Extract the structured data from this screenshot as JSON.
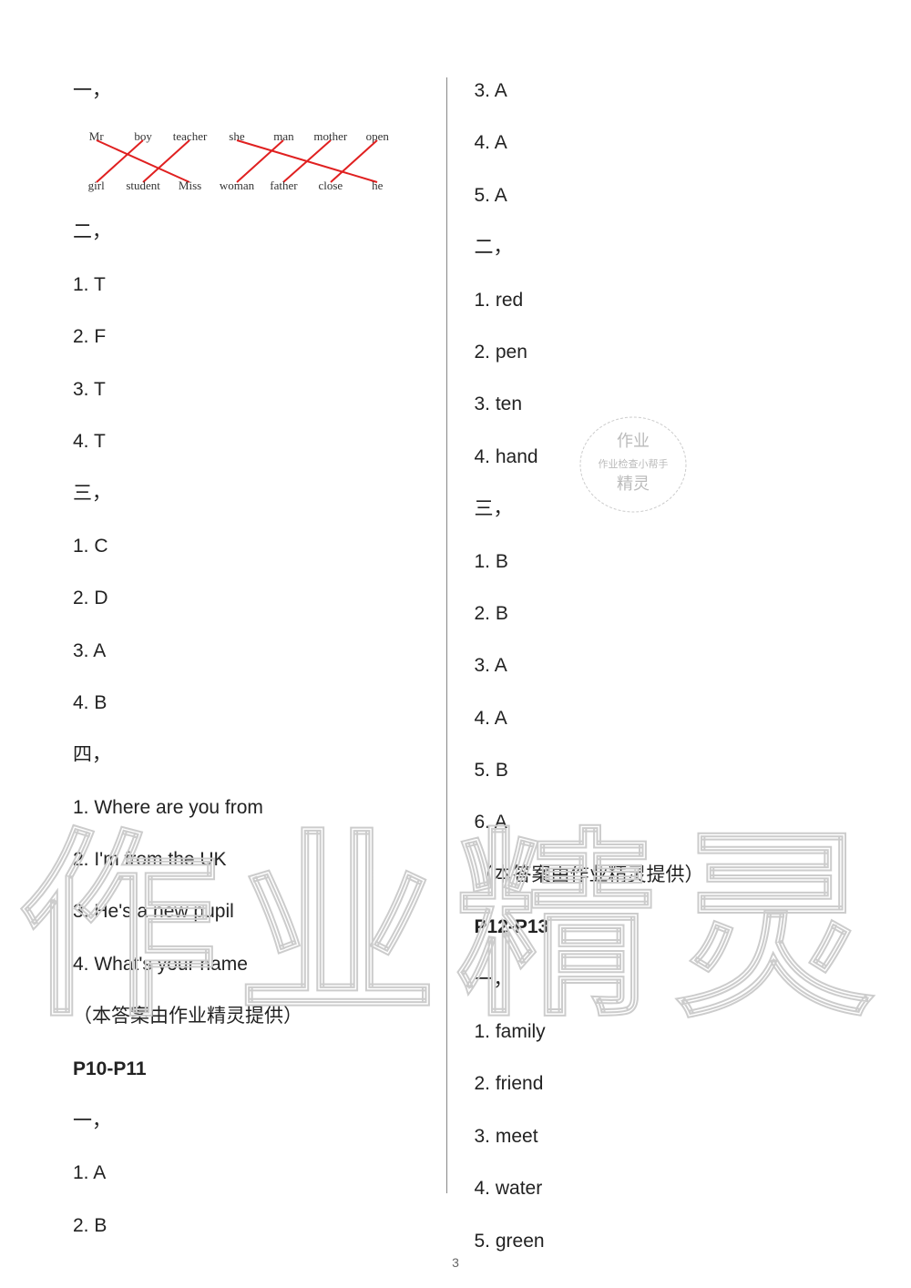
{
  "pageNumber": "3",
  "watermark_big": "作业精灵",
  "stamp": {
    "line1": "作业",
    "line2": "作业检查小帮手",
    "line3": "精灵"
  },
  "matching": {
    "top": [
      "Mr",
      "boy",
      "teacher",
      "she",
      "man",
      "mother",
      "open"
    ],
    "bottom": [
      "girl",
      "student",
      "Miss",
      "woman",
      "father",
      "close",
      "he"
    ],
    "line_color": "#e02020"
  },
  "left": {
    "s1_header": "一，",
    "s2_header": "二，",
    "s2_items": [
      {
        "n": "1.",
        "v": "T"
      },
      {
        "n": "2.",
        "v": "F"
      },
      {
        "n": "3.",
        "v": "T"
      },
      {
        "n": "4.",
        "v": "T"
      }
    ],
    "s3_header": "三，",
    "s3_items": [
      {
        "n": "1.",
        "v": "C"
      },
      {
        "n": "2.",
        "v": "D"
      },
      {
        "n": "3.",
        "v": "A"
      },
      {
        "n": "4.",
        "v": "B"
      }
    ],
    "s4_header": "四，",
    "s4_items": [
      {
        "n": "1.",
        "v": "Where are you from"
      },
      {
        "n": "2.",
        "v": "I'm from the UK"
      },
      {
        "n": "3.",
        "v": "He's a new pupil"
      },
      {
        "n": "4.",
        "v": "What's your name"
      }
    ],
    "credit": "（本答案由作业精灵提供）",
    "page_range": "P10-P11",
    "s5_header": "一，",
    "s5_items": [
      {
        "n": "1.",
        "v": "A"
      },
      {
        "n": "2.",
        "v": "B"
      }
    ]
  },
  "right": {
    "cont_items": [
      {
        "n": "3.",
        "v": "A"
      },
      {
        "n": "4.",
        "v": "A"
      },
      {
        "n": "5.",
        "v": "A"
      }
    ],
    "s2_header": "二，",
    "s2_items": [
      {
        "n": "1.",
        "v": "red"
      },
      {
        "n": "2.",
        "v": "pen"
      },
      {
        "n": "3.",
        "v": "ten"
      },
      {
        "n": "4.",
        "v": "hand"
      }
    ],
    "s3_header": "三，",
    "s3_items": [
      {
        "n": "1.",
        "v": "B"
      },
      {
        "n": "2.",
        "v": "B"
      },
      {
        "n": "3.",
        "v": "A"
      },
      {
        "n": "4.",
        "v": "A"
      },
      {
        "n": "5.",
        "v": "B"
      },
      {
        "n": "6.",
        "v": "A"
      }
    ],
    "credit": "（本答案由作业精灵提供）",
    "page_range": "P12-P13",
    "s4_header": "一，",
    "s4_items": [
      {
        "n": "1.",
        "v": "family"
      },
      {
        "n": "2.",
        "v": "friend"
      },
      {
        "n": "3.",
        "v": "meet"
      },
      {
        "n": "4.",
        "v": "water"
      },
      {
        "n": "5.",
        "v": "green"
      }
    ]
  }
}
